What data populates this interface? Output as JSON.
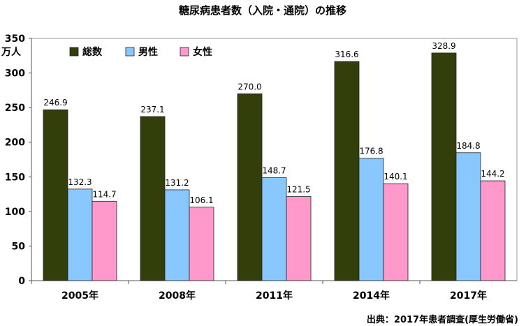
{
  "chart_data": {
    "type": "bar",
    "title": "糖尿病患者数（入院・通院）の推移",
    "y_unit": "万人",
    "ylim": [
      0,
      350
    ],
    "yticks": [
      0,
      50,
      100,
      150,
      200,
      250,
      300,
      350
    ],
    "grid": false,
    "legend_position": "top-left",
    "categories": [
      "2005年",
      "2008年",
      "2011年",
      "2014年",
      "2017年"
    ],
    "series": [
      {
        "name": "総数",
        "color": "#333f0a",
        "values": [
          246.9,
          237.1,
          270.0,
          316.6,
          328.9
        ],
        "labels": [
          "246.9",
          "237.1",
          "270.0",
          "316.6",
          "328.9"
        ]
      },
      {
        "name": "男性",
        "color": "#88c8ff",
        "values": [
          132.3,
          131.2,
          148.7,
          176.8,
          184.8
        ],
        "labels": [
          "132.3",
          "131.2",
          "148.7",
          "176.8",
          "184.8"
        ]
      },
      {
        "name": "女性",
        "color": "#ff99cc",
        "values": [
          114.7,
          106.1,
          121.5,
          140.1,
          144.2
        ],
        "labels": [
          "114.7",
          "106.1",
          "121.5",
          "140.1",
          "144.2"
        ]
      }
    ],
    "source": "出典：2017年患者調査(厚生労働省)"
  }
}
